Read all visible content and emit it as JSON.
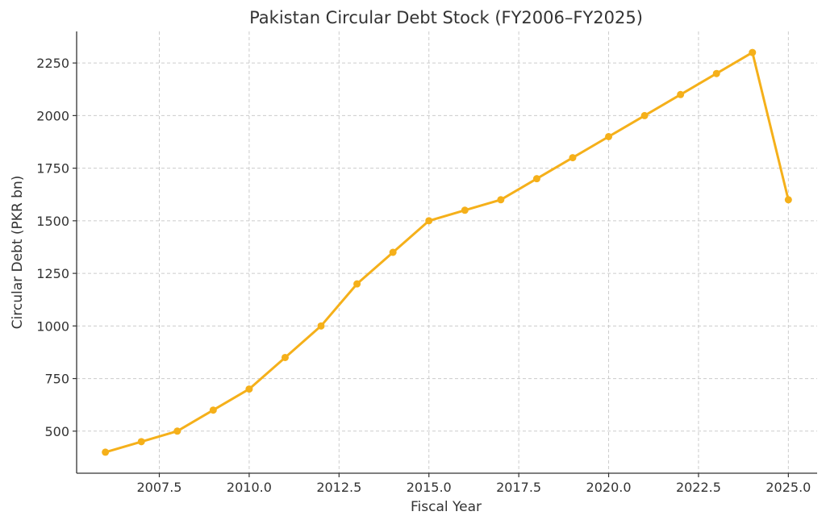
{
  "chart_data": {
    "type": "line",
    "title": "Pakistan Circular Debt Stock (FY2006–FY2025)",
    "xlabel": "Fiscal Year",
    "ylabel": "Circular Debt (PKR bn)",
    "xlim": [
      2005.2,
      2025.8
    ],
    "ylim": [
      300,
      2400
    ],
    "xticks": [
      2007.5,
      2010.0,
      2012.5,
      2015.0,
      2017.5,
      2020.0,
      2022.5,
      2025.0
    ],
    "xtick_labels": [
      "2007.5",
      "2010.0",
      "2012.5",
      "2015.0",
      "2017.5",
      "2020.0",
      "2022.5",
      "2025.0"
    ],
    "yticks": [
      500,
      750,
      1000,
      1250,
      1500,
      1750,
      2000,
      2250
    ],
    "ytick_labels": [
      "500",
      "750",
      "1000",
      "1250",
      "1500",
      "1750",
      "2000",
      "2250"
    ],
    "grid": true,
    "color": "#F5B01A",
    "series": [
      {
        "x": [
          2006,
          2007,
          2008,
          2009,
          2010,
          2011,
          2012,
          2013,
          2014,
          2015,
          2016,
          2017,
          2018,
          2019,
          2020,
          2021,
          2022,
          2023,
          2024,
          2025
        ],
        "values": [
          400,
          450,
          500,
          600,
          700,
          850,
          1000,
          1200,
          1350,
          1500,
          1550,
          1600,
          1700,
          1800,
          1900,
          2000,
          2100,
          2200,
          2300,
          1600
        ]
      }
    ]
  }
}
